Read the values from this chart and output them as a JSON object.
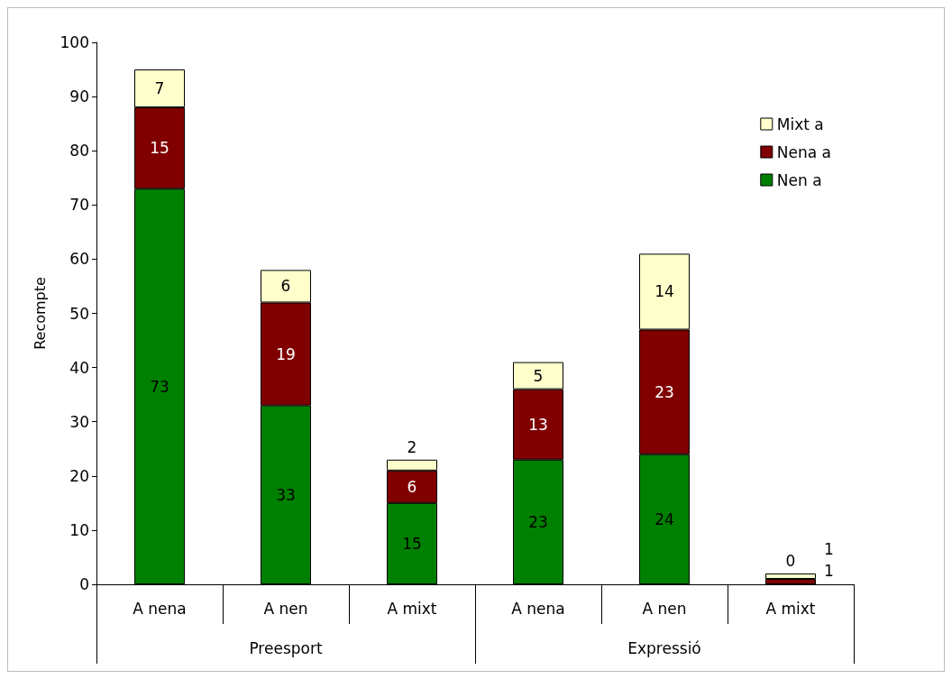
{
  "chart_data": {
    "type": "bar",
    "stacked": true,
    "ylabel": "Recompte",
    "categories": [
      "A nena",
      "A nen",
      "A mixt",
      "A nena",
      "A nen",
      "A mixt"
    ],
    "series": [
      {
        "name": "Nen a",
        "color": "#008000",
        "values": [
          73,
          33,
          15,
          23,
          24,
          0
        ]
      },
      {
        "name": "Nena a",
        "color": "#800000",
        "values": [
          15,
          19,
          6,
          13,
          23,
          1
        ]
      },
      {
        "name": "Mixt a",
        "color": "#ffffcc",
        "values": [
          7,
          6,
          2,
          5,
          14,
          1
        ]
      }
    ],
    "ylim": [
      0,
      100
    ],
    "yticks": [
      0,
      10,
      20,
      30,
      40,
      50,
      60,
      70,
      80,
      90,
      100
    ],
    "data_labels": true,
    "grid": false,
    "legend": "top right",
    "annotations": [
      "Preesport",
      "Expressió"
    ]
  }
}
